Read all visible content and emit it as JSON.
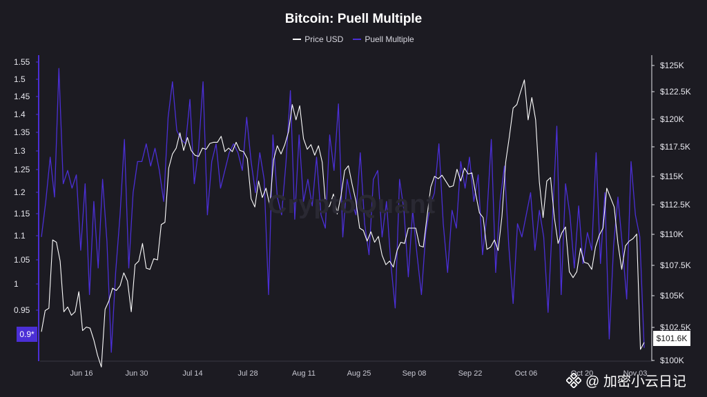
{
  "chart_data": {
    "type": "line",
    "title": "Bitcoin: Puell Multiple",
    "legend": [
      "Price USD",
      "Puell Multiple"
    ],
    "x_tick_labels": [
      "Jun 16",
      "Jun 30",
      "Jul 14",
      "Jul 28",
      "Aug 11",
      "Aug 25",
      "Sep 08",
      "Sep 22",
      "Oct 06",
      "Oct 20",
      "Nov 03"
    ],
    "y_left_ticks": [
      "1.55",
      "1.5",
      "1.45",
      "1.4",
      "1.35",
      "1.3",
      "1.25",
      "1.2",
      "1.15",
      "1.1",
      "1.05",
      "1",
      "0.95"
    ],
    "y_right_ticks": [
      "$125K",
      "$122.5K",
      "$120K",
      "$117.5K",
      "$115K",
      "$112.5K",
      "$110K",
      "$107.5K",
      "$105K",
      "$102.5K",
      "$100K"
    ],
    "y_left_range": [
      0.88,
      1.57
    ],
    "y_right_range": [
      100000,
      126000
    ],
    "current_puell_label": "0.9*",
    "current_price_label": "$101.6K",
    "watermark": "CryptoQuant",
    "series": [
      {
        "name": "Price USD",
        "color": "#ffffff",
        "axis": "right",
        "values": [
          102500,
          104300,
          104500,
          110300,
          110100,
          108500,
          104200,
          104600,
          103900,
          104200,
          105900,
          102600,
          102900,
          102800,
          101800,
          100500,
          99500,
          104400,
          105100,
          106200,
          106000,
          106400,
          107500,
          106800,
          104200,
          108200,
          108500,
          110000,
          107900,
          107800,
          108700,
          108600,
          111600,
          111800,
          116400,
          117600,
          118100,
          119400,
          117900,
          119000,
          117900,
          117500,
          117400,
          118100,
          118000,
          118500,
          118600,
          118600,
          119100,
          117800,
          118100,
          117800,
          118600,
          117900,
          117800,
          117200,
          113800,
          113100,
          115300,
          113900,
          114700,
          113200,
          117100,
          118300,
          117600,
          118400,
          119500,
          121800,
          120500,
          121700,
          118900,
          118000,
          118400,
          117500,
          118300,
          116900,
          112900,
          113200,
          114200,
          112500,
          114000,
          116200,
          116600,
          115000,
          113600,
          111300,
          111100,
          110200,
          111000,
          110100,
          110600,
          109000,
          108200,
          108500,
          108000,
          109400,
          110100,
          110000,
          111300,
          111300,
          111300,
          109800,
          109700,
          112300,
          114800,
          115700,
          115500,
          115800,
          115300,
          114800,
          114900,
          116300,
          115300,
          116400,
          115900,
          116000,
          114200,
          112600,
          112200,
          109500,
          109700,
          110300,
          109400,
          112300,
          116900,
          119100,
          121500,
          121800,
          122900,
          123900,
          120500,
          122400,
          120500,
          115200,
          112200,
          115300,
          115600,
          112200,
          110000,
          110900,
          111400,
          107600,
          107100,
          107600,
          109600,
          108400,
          108300,
          107800,
          109700,
          110700,
          111300,
          114700,
          113900,
          113100,
          110000,
          107800,
          109800,
          110200,
          110400,
          110800,
          101000,
          101600
        ]
      },
      {
        "name": "Puell Multiple",
        "color": "#4b2fd6",
        "axis": "left",
        "values": [
          1.16,
          1.24,
          1.34,
          1.25,
          1.54,
          1.28,
          1.31,
          1.27,
          1.3,
          1.13,
          1.28,
          1.03,
          1.24,
          1.09,
          1.29,
          1.15,
          0.9,
          1.08,
          1.21,
          1.38,
          1.09,
          1.26,
          1.33,
          1.33,
          1.37,
          1.32,
          1.36,
          1.31,
          1.24,
          1.43,
          1.51,
          1.4,
          1.38,
          1.37,
          1.47,
          1.28,
          1.36,
          1.51,
          1.21,
          1.33,
          1.37,
          1.27,
          1.31,
          1.35,
          1.37,
          1.35,
          1.31,
          1.43,
          1.33,
          1.26,
          1.35,
          1.29,
          1.03,
          1.39,
          1.25,
          1.21,
          1.33,
          1.49,
          1.2,
          1.39,
          1.24,
          1.29,
          1.23,
          1.34,
          1.21,
          1.18,
          1.39,
          1.31,
          1.46,
          1.16,
          1.29,
          1.24,
          1.21,
          1.35,
          1.19,
          1.12,
          1.29,
          1.31,
          1.16,
          1.24,
          1.1,
          1.0,
          1.29,
          1.22,
          1.07,
          1.22,
          1.12,
          1.03,
          1.17,
          1.23,
          1.26,
          1.37,
          1.19,
          1.08,
          1.22,
          1.18,
          1.33,
          1.27,
          1.34,
          1.24,
          1.3,
          1.12,
          1.21,
          1.38,
          1.08,
          1.24,
          1.32,
          1.14,
          1.01,
          1.19,
          1.16,
          1.21,
          1.26,
          1.13,
          1.22,
          1.16,
          0.99,
          1.2,
          1.41,
          1.03,
          1.28,
          1.21,
          1.09,
          1.23,
          1.1,
          1.17,
          1.13,
          1.35,
          1.1,
          1.26,
          0.93,
          1.14,
          1.25,
          1.14,
          1.02,
          1.33,
          1.21,
          1.16,
          0.91
        ]
      }
    ]
  },
  "brand": {
    "text": "@ 加密小云日记"
  }
}
